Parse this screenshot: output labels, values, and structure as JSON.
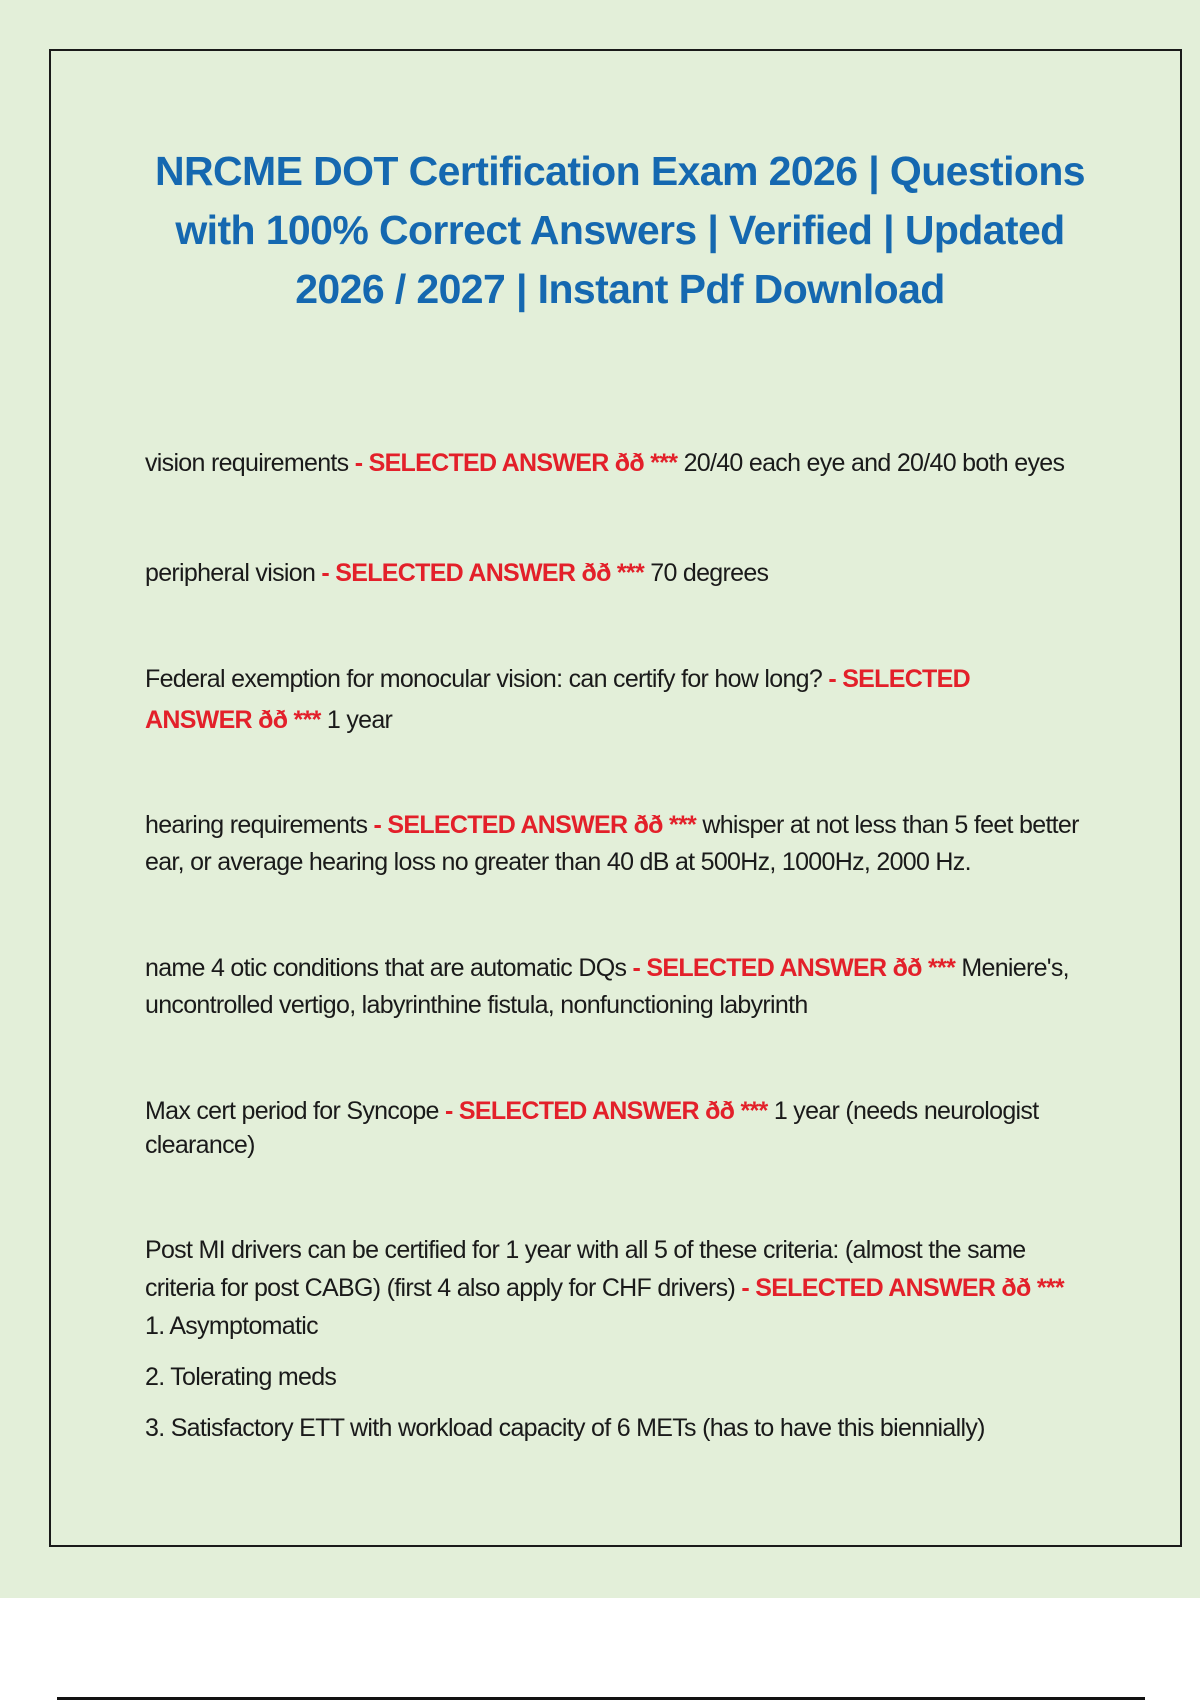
{
  "document": {
    "title_lines": [
      "NRCME DOT Certification Exam 2026 | Questions",
      "with 100% Correct Answers | Verified | Updated",
      "2026 / 2027 | Instant Pdf Download"
    ],
    "answer_marker": "- SELECTED ANSWER ðð",
    "stars": "***",
    "colors": {
      "title": "#1568b0",
      "answer_marker": "#e3202a",
      "background": "#e3efd9",
      "text": "#1a1a1a"
    },
    "items": [
      {
        "question": "vision requirements",
        "answer": "20/40 each eye and 20/40 both eyes"
      },
      {
        "question": "peripheral vision",
        "answer": "70 degrees"
      },
      {
        "question": "Federal exemption for monocular vision: can certify for how long?",
        "answer": "1 year"
      },
      {
        "question": "hearing requirements",
        "answer": "whisper at not less than 5 feet better ear, or average hearing loss no greater than 40 dB at 500Hz, 1000Hz, 2000 Hz."
      },
      {
        "question": "name 4 otic conditions that are automatic DQs",
        "answer": "Meniere's, uncontrolled vertigo, labyrinthine fistula, nonfunctioning labyrinth"
      },
      {
        "question": "Max cert period for Syncope",
        "answer": "1 year (needs neurologist clearance)"
      },
      {
        "question": "Post MI drivers can be certified for 1 year with all 5 of these criteria: (almost the same criteria for post CABG) (first 4 also apply for CHF drivers)",
        "answer": "1. Asymptomatic",
        "extra_lines": [
          "2. Tolerating meds",
          "3. Satisfactory ETT with workload capacity of 6 METs (has to have this biennially)"
        ]
      }
    ]
  }
}
